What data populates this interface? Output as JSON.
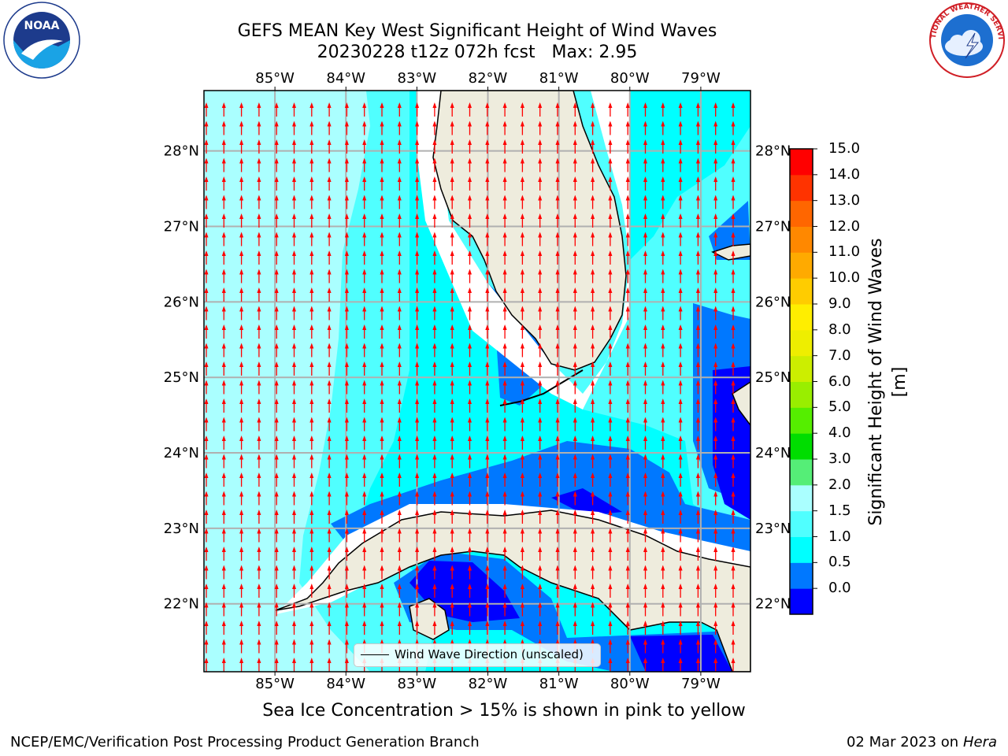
{
  "title": {
    "line1": "GEFS MEAN Key West Significant Height of Wind Waves",
    "line2": "20230228 t12z 072h fcst   Max: 2.95"
  },
  "map": {
    "lon_ticks": [
      "85°W",
      "84°W",
      "83°W",
      "82°W",
      "81°W",
      "80°W",
      "79°W"
    ],
    "lat_ticks": [
      "28°N",
      "27°N",
      "26°N",
      "25°N",
      "24°N",
      "23°N",
      "22°N"
    ],
    "lon_range": [
      -86,
      -78.3
    ],
    "lat_range": [
      21.1,
      28.8
    ],
    "grid": true,
    "wind_direction": "north",
    "arrow_color": "#ff0000",
    "land_color": "#eeecdd"
  },
  "colorbar": {
    "label": "Significant Height of Wind Waves [m]",
    "ticks": [
      "15.0",
      "14.0",
      "13.0",
      "12.0",
      "11.0",
      "10.0",
      "9.0",
      "8.0",
      "7.0",
      "6.0",
      "5.0",
      "4.0",
      "3.0",
      "2.0",
      "1.5",
      "1.0",
      "0.5",
      "0.0"
    ],
    "colors_bottom_to_top": [
      "#0000ff",
      "#0078ff",
      "#00ffff",
      "#50ffff",
      "#aaffff",
      "#55ee77",
      "#00dd00",
      "#55ee00",
      "#99ee00",
      "#ccee00",
      "#eeee00",
      "#ffee00",
      "#ffcc00",
      "#ffaa00",
      "#ff8800",
      "#ff6600",
      "#ff3300",
      "#ff0000"
    ]
  },
  "legend": {
    "label": "Wind Wave Direction (unscaled)"
  },
  "ice_note": "Sea Ice Concentration > 15% is shown in pink to yellow",
  "footer": {
    "left": "NCEP/EMC/Verification Post Processing Product Generation Branch",
    "date": "02 Mar 2023 on",
    "machine": "Hera"
  },
  "logos": {
    "left": "NOAA",
    "right": "NATIONAL WEATHER SERVICE"
  }
}
